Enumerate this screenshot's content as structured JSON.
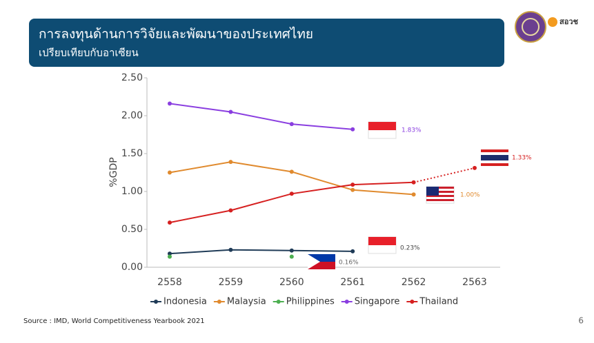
{
  "header": {
    "title": "การลงทุนด้านการวิจัยและพัฒนาของประเทศไทย",
    "subtitle": "เปรียบเทียบกับอาเซียน",
    "logo_text": "สอวช"
  },
  "chart_data": {
    "type": "line",
    "ylabel": "%GDP",
    "categories": [
      "2558",
      "2559",
      "2560",
      "2561",
      "2562",
      "2563"
    ],
    "ylim": [
      0,
      2.5
    ],
    "yticks": [
      {
        "value": 0,
        "label": "0.00"
      },
      {
        "value": 0.5,
        "label": "0.50"
      },
      {
        "value": 1,
        "label": "1.00"
      },
      {
        "value": 1.5,
        "label": "1.50"
      },
      {
        "value": 2,
        "label": "2.00"
      },
      {
        "value": 2.5,
        "label": "2.50"
      }
    ],
    "series": [
      {
        "name": "Indonesia",
        "color": "#1f3b57",
        "values": [
          0.18,
          0.23,
          0.22,
          0.21,
          null,
          null
        ]
      },
      {
        "name": "Malaysia",
        "color": "#e08a2e",
        "values": [
          1.25,
          1.39,
          1.26,
          1.02,
          0.96,
          null
        ]
      },
      {
        "name": "Philippines",
        "color": "#4caf50",
        "values": [
          0.14,
          null,
          0.14,
          null,
          null,
          null
        ]
      },
      {
        "name": "Singapore",
        "color": "#8a3ee0",
        "values": [
          2.16,
          2.05,
          1.89,
          1.82,
          null,
          null
        ]
      },
      {
        "name": "Thailand",
        "color": "#d62020",
        "values": [
          0.59,
          0.75,
          0.97,
          1.09,
          1.12,
          1.31
        ],
        "dashed_last_segment": true
      }
    ],
    "annotations": [
      "1.83%",
      "1.33%",
      "1.00%",
      "0.23%",
      "0.16%"
    ],
    "legend": "bottom"
  },
  "footer": {
    "source": "Source : IMD, World Competitiveness Yearbook 2021",
    "page": "6"
  }
}
